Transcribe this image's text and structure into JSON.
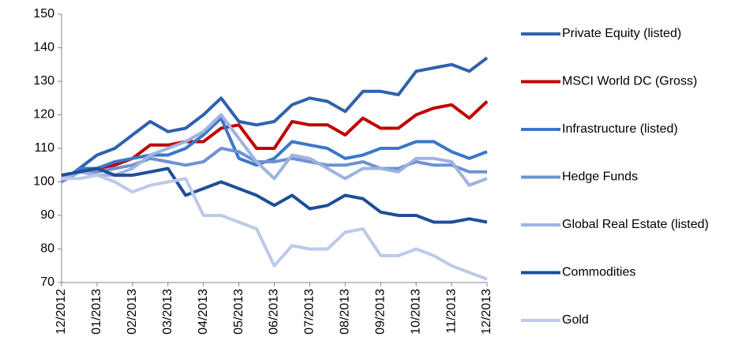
{
  "chart_data": {
    "type": "line",
    "categories": [
      "12/2012",
      null,
      "01/2013",
      null,
      "02/2013",
      null,
      "03/2013",
      null,
      "04/2013",
      null,
      "05/2013",
      null,
      "06/2013",
      null,
      "07/2013",
      null,
      "08/2013",
      null,
      "09/2013",
      null,
      "10/2013",
      null,
      "11/2013",
      null,
      "12/2013"
    ],
    "ylim": [
      70,
      150
    ],
    "yticks": [
      70,
      80,
      90,
      100,
      110,
      120,
      130,
      140,
      150
    ],
    "legend": "right",
    "series": [
      {
        "name": "Private Equity (listed)",
        "color": "#2f62ad",
        "values": [
          100,
          104,
          108,
          110,
          114,
          118,
          115,
          116,
          120,
          125,
          118,
          117,
          118,
          123,
          125,
          124,
          121,
          127,
          127,
          126,
          133,
          134,
          135,
          133,
          137
        ]
      },
      {
        "name": "MSCI World DC (Gross)",
        "color": "#c00000",
        "values": [
          101,
          103,
          104,
          105,
          107,
          111,
          111,
          112,
          112,
          116,
          117,
          110,
          110,
          118,
          117,
          117,
          114,
          119,
          116,
          116,
          120,
          122,
          123,
          119,
          124
        ]
      },
      {
        "name": "Infrastructure (listed)",
        "color": "#3a78c8",
        "values": [
          100,
          104,
          104,
          106,
          107,
          108,
          108,
          110,
          114,
          119,
          107,
          105,
          107,
          112,
          111,
          110,
          107,
          108,
          110,
          110,
          112,
          112,
          109,
          107,
          109
        ]
      },
      {
        "name": "Hedge Funds",
        "color": "#6f90d2",
        "values": [
          100,
          103,
          103,
          104,
          105,
          107,
          106,
          105,
          106,
          110,
          109,
          106,
          106,
          107,
          106,
          105,
          105,
          106,
          104,
          104,
          106,
          105,
          105,
          103,
          103
        ]
      },
      {
        "name": "Global Real Estate (listed)",
        "color": "#9fb3df",
        "values": [
          101,
          103,
          102,
          102,
          104,
          108,
          110,
          112,
          115,
          120,
          113,
          106,
          101,
          108,
          107,
          104,
          101,
          104,
          104,
          103,
          107,
          107,
          106,
          99,
          101
        ]
      },
      {
        "name": "Commodities",
        "color": "#1f4e98",
        "values": [
          102,
          103,
          104,
          102,
          102,
          103,
          104,
          96,
          98,
          100,
          98,
          96,
          93,
          96,
          92,
          93,
          96,
          95,
          91,
          90,
          90,
          88,
          88,
          89,
          88
        ]
      },
      {
        "name": "Gold",
        "color": "#bdc9e9",
        "values": [
          101,
          101,
          102,
          100,
          97,
          99,
          100,
          101,
          90,
          90,
          88,
          86,
          75,
          81,
          80,
          80,
          85,
          86,
          78,
          78,
          80,
          78,
          75,
          73,
          71
        ]
      }
    ]
  }
}
